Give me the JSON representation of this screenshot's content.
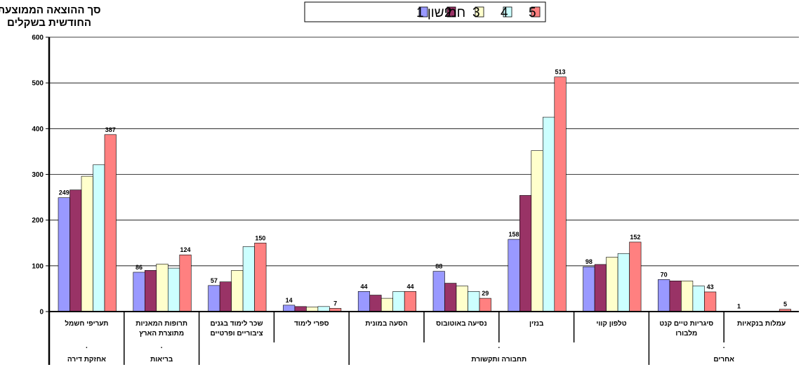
{
  "chart_data": {
    "type": "bar",
    "ylabel_lines": [
      "סך ההוצאה הממוצעת",
      "החודשית בשקלים"
    ],
    "ylim": [
      0,
      600
    ],
    "yticks": [
      0,
      100,
      200,
      300,
      400,
      500,
      600
    ],
    "grid": true,
    "legend_placement": "top-center",
    "categories": [
      {
        "label_lines": [
          "תעריפי חשמל"
        ]
      },
      {
        "label_lines": [
          "תרופות המאניות",
          "מתוצרת הארץ"
        ]
      },
      {
        "label_lines": [
          "שכר לימוד בגנים",
          "ציבוריים ופרטיים"
        ]
      },
      {
        "label_lines": [
          "ספרי לימוד"
        ]
      },
      {
        "label_lines": [
          "הסעה במונית"
        ]
      },
      {
        "label_lines": [
          "נסיעה באוטובוס"
        ]
      },
      {
        "label_lines": [
          "בנזין"
        ]
      },
      {
        "label_lines": [
          "טלפון קווי"
        ]
      },
      {
        "label_lines": [
          "סיגריות טיים קנט",
          "מלבורו"
        ]
      },
      {
        "label_lines": [
          "עמלות בנקאיות"
        ]
      }
    ],
    "groups": [
      {
        "label": "אחזקת דירה",
        "dot": ".",
        "start": 0,
        "end": 0
      },
      {
        "label": "בריאות",
        "dot": ".",
        "start": 1,
        "end": 1
      },
      {
        "label": "",
        "dot": "",
        "start": 2,
        "end": 3
      },
      {
        "label": "תחבורה ותקשורת",
        "dot": ".",
        "start": 4,
        "end": 7
      },
      {
        "label": "אחרים",
        "dot": ".",
        "start": 8,
        "end": 9
      }
    ],
    "series": [
      {
        "name": "חמישון 1",
        "color": "#9999ff",
        "values": [
          249,
          86,
          57,
          14,
          44,
          88,
          158,
          98,
          70,
          1
        ]
      },
      {
        "name": "2",
        "color": "#993366",
        "values": [
          266,
          90,
          65,
          11,
          36,
          62,
          254,
          103,
          67,
          0
        ]
      },
      {
        "name": "3",
        "color": "#ffffcc",
        "values": [
          296,
          104,
          90,
          10,
          29,
          56,
          352,
          119,
          67,
          0
        ]
      },
      {
        "name": "4",
        "color": "#ccffff",
        "values": [
          321,
          95,
          142,
          11,
          44,
          44,
          425,
          127,
          56,
          0
        ]
      },
      {
        "name": "5",
        "color": "#ff8080",
        "values": [
          387,
          124,
          150,
          7,
          44,
          29,
          513,
          152,
          43,
          5
        ]
      }
    ],
    "data_labels": [
      {
        "category": 0,
        "series": 0,
        "text": "249"
      },
      {
        "category": 0,
        "series": 4,
        "text": "387"
      },
      {
        "category": 1,
        "series": 0,
        "text": "86"
      },
      {
        "category": 1,
        "series": 4,
        "text": "124"
      },
      {
        "category": 2,
        "series": 0,
        "text": "57"
      },
      {
        "category": 2,
        "series": 4,
        "text": "150"
      },
      {
        "category": 3,
        "series": 0,
        "text": "14"
      },
      {
        "category": 3,
        "series": 4,
        "text": "7"
      },
      {
        "category": 4,
        "series": 0,
        "text": "44"
      },
      {
        "category": 4,
        "series": 4,
        "text": "44"
      },
      {
        "category": 5,
        "series": 0,
        "text": "88"
      },
      {
        "category": 5,
        "series": 4,
        "text": "29"
      },
      {
        "category": 6,
        "series": 0,
        "text": "158"
      },
      {
        "category": 6,
        "series": 4,
        "text": "513"
      },
      {
        "category": 7,
        "series": 0,
        "text": "98"
      },
      {
        "category": 7,
        "series": 4,
        "text": "152"
      },
      {
        "category": 8,
        "series": 0,
        "text": "70"
      },
      {
        "category": 8,
        "series": 4,
        "text": "43"
      },
      {
        "category": 9,
        "series": 0,
        "text": "1"
      },
      {
        "category": 9,
        "series": 4,
        "text": "5"
      }
    ]
  }
}
